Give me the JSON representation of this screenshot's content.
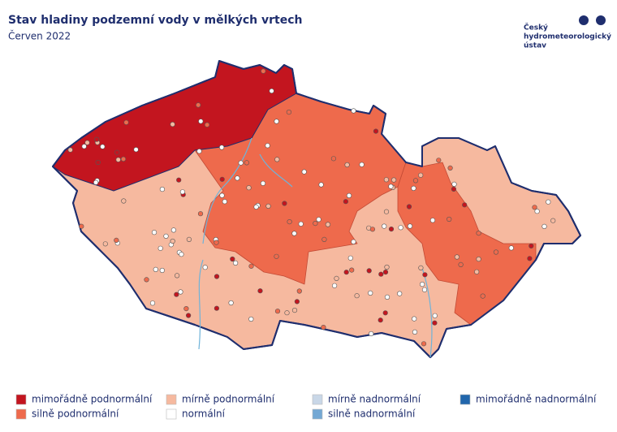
{
  "header": {
    "title": "Stav hladiny podzemní vody v mělkých vrtech",
    "subtitle": "Červen 2022",
    "logo": [
      "Český",
      "hydrometeorologický",
      "ústav"
    ]
  },
  "legend": [
    {
      "label": "mimořádně podnormální",
      "color": "#c3151f"
    },
    {
      "label": "silně podnormální",
      "color": "#ee6a4c"
    },
    {
      "label": "mírně podnormální",
      "color": "#f6b99f"
    },
    {
      "label": "normální",
      "color": "#ffffff"
    },
    {
      "label": "mírně nadnormální",
      "color": "#c9d7e7"
    },
    {
      "label": "silně nadnormální",
      "color": "#74a8d4"
    },
    {
      "label": "mimořádně nadnormální",
      "color": "#2166ac"
    }
  ]
}
